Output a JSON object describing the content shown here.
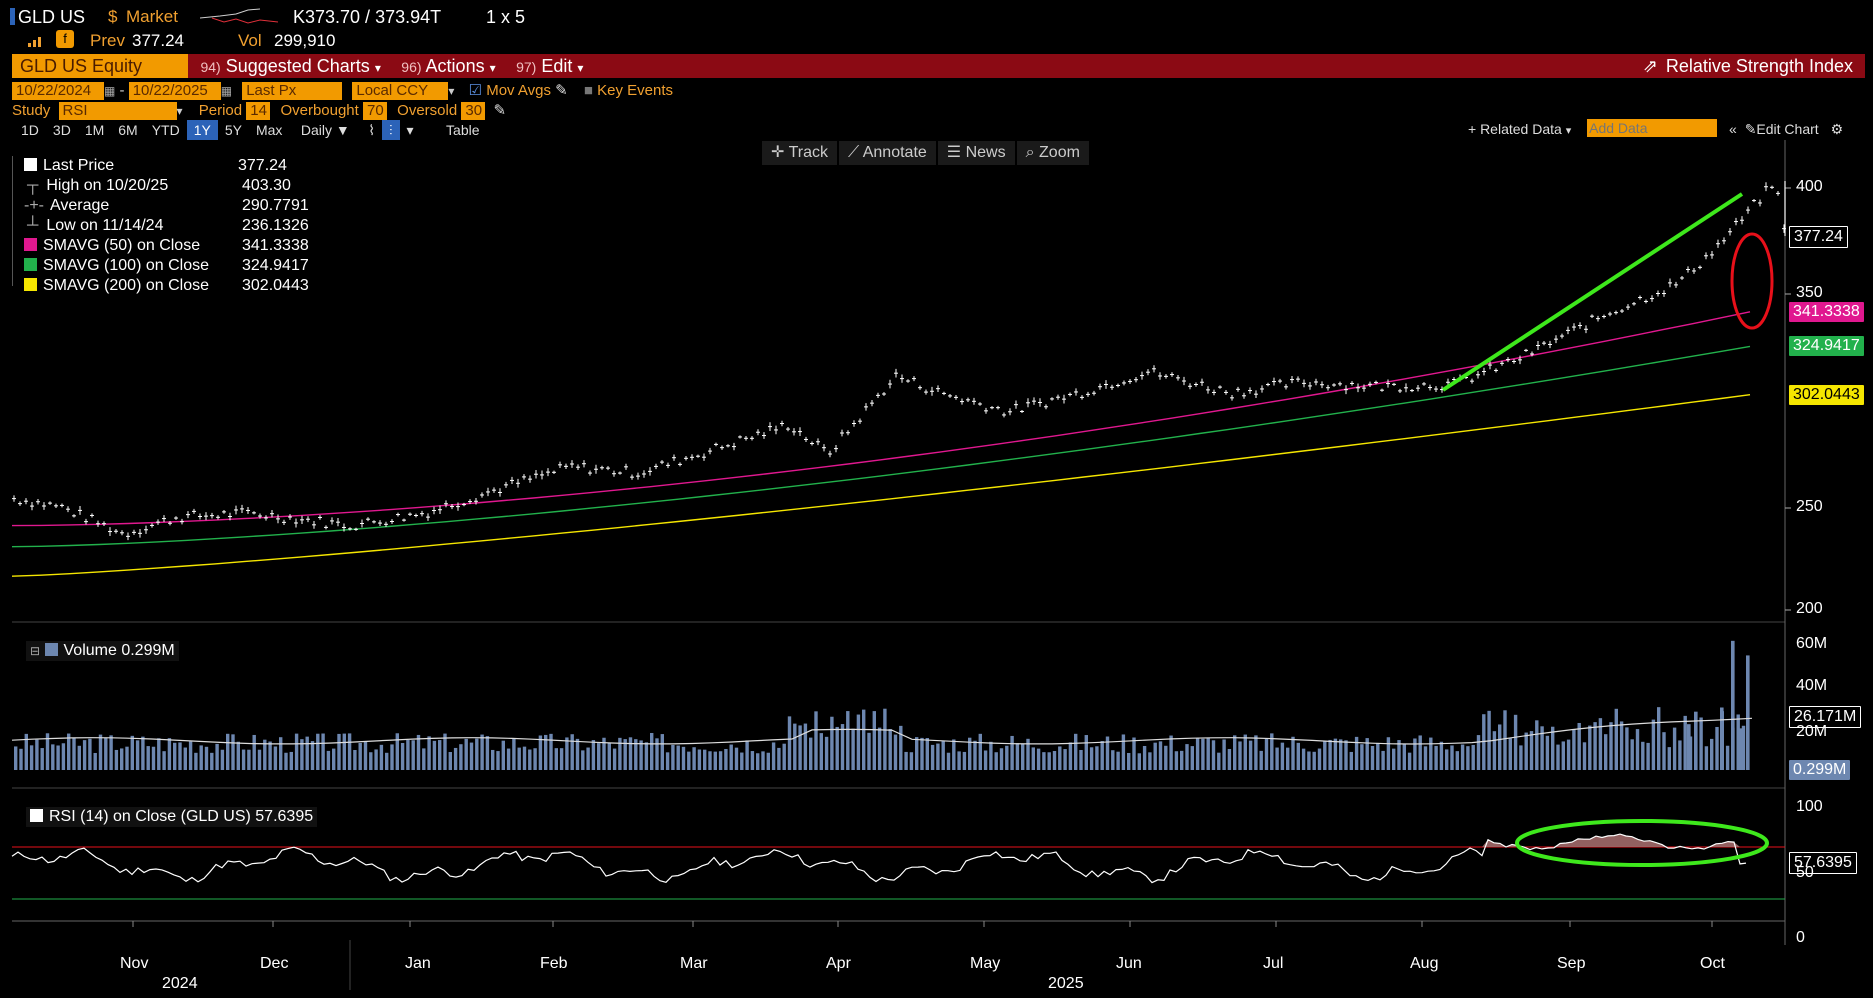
{
  "header": {
    "ticker": "GLD US",
    "currency_symbol": "$",
    "market": "Market",
    "bid_ask": "K373.70 / 373.94T",
    "size": "1 x 5",
    "prev_label": "Prev",
    "prev_value": "377.24",
    "vol_label": "Vol",
    "vol_value": "299,910"
  },
  "menu": {
    "security": "GLD US Equity",
    "suggested_num": "94)",
    "suggested": "Suggested Charts",
    "actions_num": "96)",
    "actions": "Actions",
    "edit_num": "97)",
    "edit": "Edit",
    "right_title": "Relative Strength Index"
  },
  "controls": {
    "start_date": "10/22/2024",
    "end_date": "10/22/2025",
    "price_field": "Last Px",
    "currency": "Local CCY",
    "mov_avgs": "Mov Avgs",
    "key_events": "Key Events",
    "study_label": "Study",
    "study": "RSI",
    "period_label": "Period",
    "period": "14",
    "overbought_label": "Overbought",
    "overbought": "70",
    "oversold_label": "Oversold",
    "oversold": "30",
    "ranges": [
      "1D",
      "3D",
      "1M",
      "6M",
      "YTD",
      "1Y",
      "5Y",
      "Max"
    ],
    "selected_range": "1Y",
    "frequency": "Daily",
    "table": "Table",
    "related_data": "+ Related Data",
    "add_data_placeholder": "Add Data",
    "edit_chart": "Edit Chart"
  },
  "tools": {
    "track": "Track",
    "annotate": "Annotate",
    "news": "News",
    "zoom": "Zoom"
  },
  "legend": [
    {
      "label": "Last Price",
      "value": "377.24",
      "color": "#ffffff"
    },
    {
      "label": "High on 10/20/25",
      "value": "403.30",
      "color": null
    },
    {
      "label": "Average",
      "value": "290.7791",
      "color": null
    },
    {
      "label": "Low on 11/14/24",
      "value": "236.1326",
      "color": null
    },
    {
      "label": "SMAVG (50)  on Close",
      "value": "341.3338",
      "color": "#e0188f"
    },
    {
      "label": "SMAVG (100)  on Close",
      "value": "324.9417",
      "color": "#22b14c"
    },
    {
      "label": "SMAVG (200)  on Close",
      "value": "302.0443",
      "color": "#f5e600"
    }
  ],
  "price_tags": {
    "last": "377.24",
    "sma50": "341.3338",
    "sma100": "324.9417",
    "sma200": "302.0443"
  },
  "price_ticks": [
    "400",
    "350",
    "250",
    "200"
  ],
  "volume": {
    "legend": "Volume 0.299M",
    "ticks": [
      "60M",
      "40M",
      "20M"
    ],
    "avg_tag": "26.171M",
    "last_tag": "0.299M"
  },
  "rsi": {
    "legend": "RSI (14)  on Close (GLD US) 57.6395",
    "tag": "57.6395",
    "ticks": [
      "100",
      "50",
      "0"
    ]
  },
  "x_axis": {
    "months": [
      "Nov",
      "Dec",
      "Jan",
      "Feb",
      "Mar",
      "Apr",
      "May",
      "Jun",
      "Jul",
      "Aug",
      "Sep",
      "Oct"
    ],
    "years": [
      "2024",
      "2025"
    ]
  },
  "colors": {
    "sma50": "#e0188f",
    "sma100": "#22b14c",
    "sma200": "#f5e600",
    "annotation_green": "#3ee81c",
    "annotation_red": "#e8101a",
    "volume_bar": "#6d87b0"
  },
  "chart_data": {
    "type": "line",
    "title": "GLD US Equity",
    "x_range": [
      "2024-10-22",
      "2025-10-22"
    ],
    "ylim_price": [
      200,
      410
    ],
    "price_series": {
      "name": "Last Price",
      "x": [
        "2024-10-22",
        "2024-11-01",
        "2024-11-14",
        "2024-11-25",
        "2024-12-10",
        "2024-12-31",
        "2025-01-15",
        "2025-01-31",
        "2025-02-14",
        "2025-02-28",
        "2025-03-14",
        "2025-03-31",
        "2025-04-08",
        "2025-04-22",
        "2025-05-01",
        "2025-05-15",
        "2025-05-30",
        "2025-06-13",
        "2025-06-30",
        "2025-07-15",
        "2025-07-31",
        "2025-08-15",
        "2025-08-29",
        "2025-09-15",
        "2025-09-30",
        "2025-10-08",
        "2025-10-15",
        "2025-10-20",
        "2025-10-22"
      ],
      "y": [
        253,
        249,
        236,
        244,
        246,
        240,
        246,
        258,
        268,
        265,
        275,
        288,
        274,
        311,
        303,
        294,
        303,
        313,
        303,
        308,
        306,
        307,
        320,
        340,
        355,
        372,
        390,
        403.3,
        377.24
      ]
    },
    "sma_series": [
      {
        "name": "SMAVG (50)",
        "y_start": 240,
        "y_end": 341.3338
      },
      {
        "name": "SMAVG (100)",
        "y_start": 230,
        "y_end": 324.9417
      },
      {
        "name": "SMAVG (200)",
        "y_start": 216,
        "y_end": 302.0443
      }
    ],
    "volume_avg": "26.171M",
    "rsi_levels": {
      "overbought": 70,
      "oversold": 30,
      "last": 57.6395
    }
  }
}
